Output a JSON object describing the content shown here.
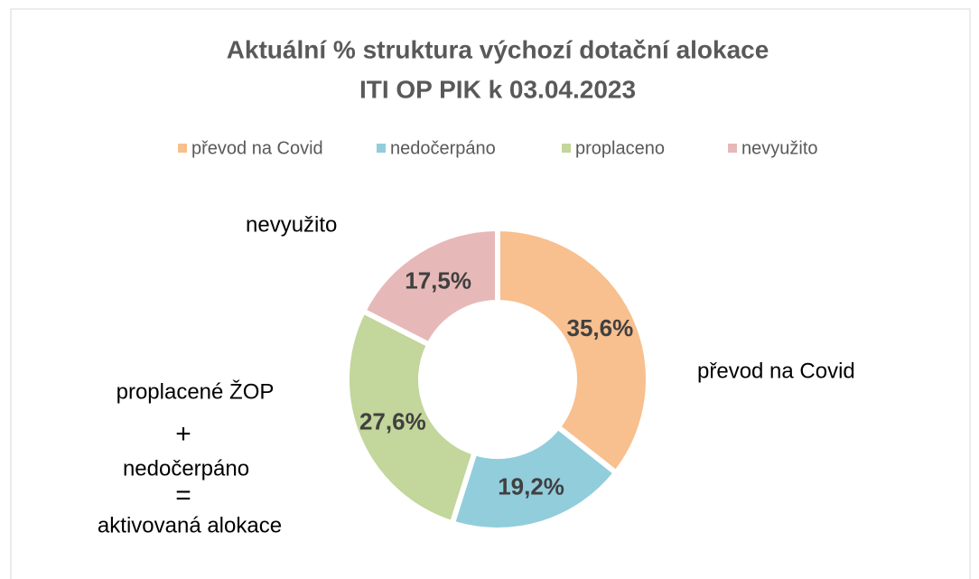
{
  "chart_data": {
    "type": "donut",
    "title": [
      "Aktuální % struktura výchozí dotační alokace",
      "ITI OP PIK k 03.04.2023"
    ],
    "categories": [
      "převod na Covid",
      "nedočerpáno",
      "proplaceno",
      "nevyužito"
    ],
    "values": [
      35.6,
      19.2,
      27.6,
      17.5
    ],
    "value_labels": [
      "35,6%",
      "19,2%",
      "27,6%",
      "17,5%"
    ],
    "colors": [
      "#F8BF8F",
      "#92CDDC",
      "#C3D69B",
      "#E6B9B8"
    ],
    "legend": "top",
    "annotations": [
      "nevyužito",
      "převod na  Covid",
      "proplacené ŽOP",
      "+",
      "nedočerpáno",
      "=",
      "aktivovaná alokace"
    ]
  }
}
